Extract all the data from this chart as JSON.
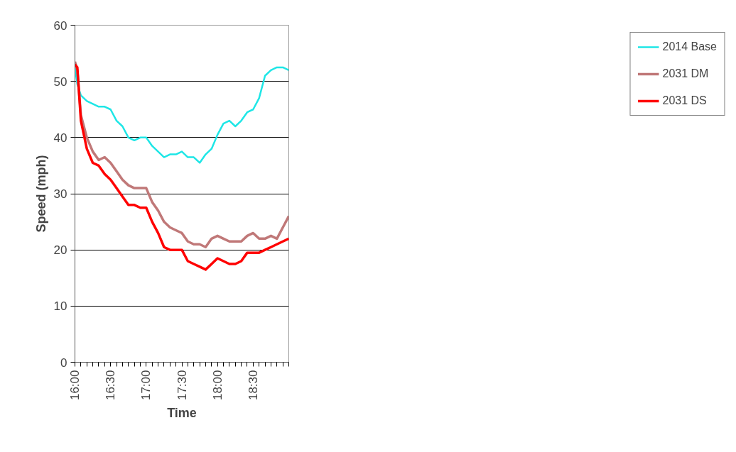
{
  "chart_data": {
    "type": "line",
    "xlabel": "Time",
    "ylabel": "Speed (mph)",
    "x": [
      16.0,
      16.0333,
      16.0833,
      16.1667,
      16.25,
      16.3333,
      16.4167,
      16.5,
      16.5833,
      16.6667,
      16.75,
      16.8333,
      16.9167,
      17.0,
      17.0833,
      17.1667,
      17.25,
      17.3333,
      17.4167,
      17.5,
      17.5833,
      17.6667,
      17.75,
      17.8333,
      17.9167,
      18.0,
      18.0833,
      18.1667,
      18.25,
      18.3333,
      18.4167,
      18.5,
      18.5833,
      18.6667,
      18.75,
      18.8333,
      18.9167,
      19.0
    ],
    "series": [
      {
        "name": "2014 Base",
        "color": "#1ee6e6",
        "values": [
          52.5,
          49.5,
          47.5,
          46.5,
          46,
          45.5,
          45.5,
          45,
          43,
          42,
          40,
          39.5,
          40,
          40,
          38.5,
          37.5,
          36.5,
          37,
          37,
          37.5,
          36.5,
          36.5,
          35.5,
          37,
          38,
          40.5,
          42.5,
          43,
          42,
          43,
          44.5,
          45,
          47,
          51,
          52,
          52.5,
          52.5,
          52
        ]
      },
      {
        "name": "2031 DM",
        "color": "#c07878",
        "values": [
          53.5,
          52,
          44,
          40,
          37.5,
          36,
          36.5,
          35.5,
          34,
          32.5,
          31.5,
          31,
          31,
          31,
          28.5,
          27,
          25,
          24,
          23.5,
          23,
          21.5,
          21,
          21,
          20.5,
          22,
          22.5,
          22,
          21.5,
          21.5,
          21.5,
          22.5,
          23,
          22,
          22,
          22.5,
          22,
          24,
          26
        ]
      },
      {
        "name": "2031 DS",
        "color": "#ff0000",
        "values": [
          53,
          52.5,
          43,
          38,
          35.5,
          35,
          33.5,
          32.5,
          31,
          29.5,
          28,
          28,
          27.5,
          27.5,
          25,
          23,
          20.5,
          20,
          20,
          20,
          18,
          17.5,
          17,
          16.5,
          17.5,
          18.5,
          18,
          17.5,
          17.5,
          18,
          19.5,
          19.5,
          19.5,
          20,
          20.5,
          21,
          21.5,
          22
        ]
      }
    ],
    "xlim": [
      16.0,
      19.0
    ],
    "xticks": [
      {
        "value": 16.0,
        "label": "16:00"
      },
      {
        "value": 16.0833,
        "label": null
      },
      {
        "value": 16.1667,
        "label": null
      },
      {
        "value": 16.25,
        "label": null
      },
      {
        "value": 16.3333,
        "label": null
      },
      {
        "value": 16.4167,
        "label": null
      },
      {
        "value": 16.5,
        "label": "16:30"
      },
      {
        "value": 16.5833,
        "label": null
      },
      {
        "value": 16.6667,
        "label": null
      },
      {
        "value": 16.75,
        "label": null
      },
      {
        "value": 16.8333,
        "label": null
      },
      {
        "value": 16.9167,
        "label": null
      },
      {
        "value": 17.0,
        "label": "17:00"
      },
      {
        "value": 17.0833,
        "label": null
      },
      {
        "value": 17.1667,
        "label": null
      },
      {
        "value": 17.25,
        "label": null
      },
      {
        "value": 17.3333,
        "label": null
      },
      {
        "value": 17.4167,
        "label": null
      },
      {
        "value": 17.5,
        "label": "17:30"
      },
      {
        "value": 17.5833,
        "label": null
      },
      {
        "value": 17.6667,
        "label": null
      },
      {
        "value": 17.75,
        "label": null
      },
      {
        "value": 17.8333,
        "label": null
      },
      {
        "value": 17.9167,
        "label": null
      },
      {
        "value": 18.0,
        "label": "18:00"
      },
      {
        "value": 18.0833,
        "label": null
      },
      {
        "value": 18.1667,
        "label": null
      },
      {
        "value": 18.25,
        "label": null
      },
      {
        "value": 18.3333,
        "label": null
      },
      {
        "value": 18.4167,
        "label": null
      },
      {
        "value": 18.5,
        "label": "18:30"
      },
      {
        "value": 18.5833,
        "label": null
      },
      {
        "value": 18.6667,
        "label": null
      },
      {
        "value": 18.75,
        "label": null
      },
      {
        "value": 18.8333,
        "label": null
      },
      {
        "value": 18.9167,
        "label": null
      },
      {
        "value": 19.0,
        "label": null
      }
    ],
    "ylim": [
      0,
      60
    ],
    "yticks": [
      0,
      10,
      20,
      30,
      40,
      50,
      60
    ],
    "grid": "y",
    "legend": "right"
  }
}
